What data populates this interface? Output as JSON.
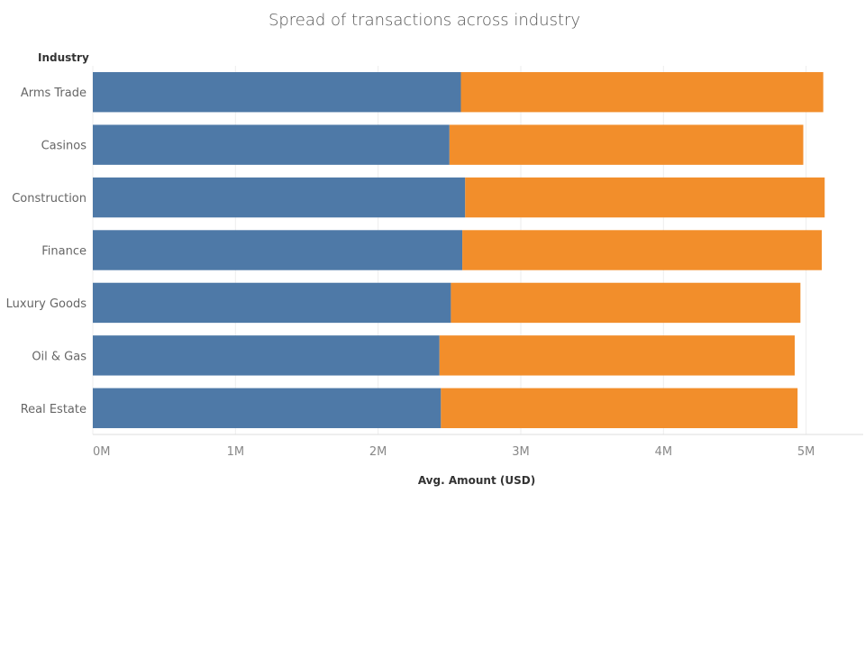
{
  "chart_data": {
    "type": "bar",
    "orientation": "horizontal",
    "stacked": true,
    "title": "Spread of transactions across industry",
    "ylabel": "Industry",
    "xlabel": "Avg. Amount (USD)",
    "categories": [
      "Arms Trade",
      "Casinos",
      "Construction",
      "Finance",
      "Luxury Goods",
      "Oil & Gas",
      "Real Estate"
    ],
    "series": [
      {
        "color": "#4e79a7",
        "values": [
          2580000,
          2500000,
          2610000,
          2590000,
          2510000,
          2430000,
          2440000
        ]
      },
      {
        "color": "#f28e2b",
        "values": [
          2540000,
          2480000,
          2520000,
          2520000,
          2450000,
          2490000,
          2500000
        ]
      }
    ],
    "xlim": [
      0,
      5400000
    ],
    "xticks": [
      0,
      1000000,
      2000000,
      3000000,
      4000000,
      5000000
    ],
    "xtick_labels": [
      "0M",
      "1M",
      "2M",
      "3M",
      "4M",
      "5M"
    ],
    "grid": true
  }
}
